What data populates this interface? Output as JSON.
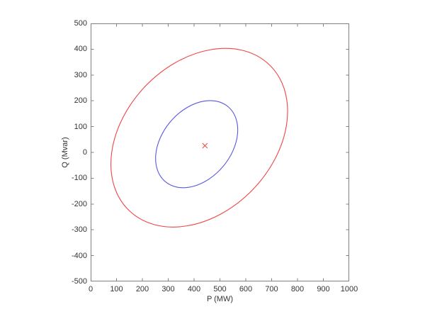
{
  "window": {
    "background_color": "#ffffff",
    "axis_color": "#808080",
    "text_color": "#333333"
  },
  "chart_data": {
    "type": "line",
    "title": "",
    "xlabel": "P (MW)",
    "ylabel": "Q (Mvar)",
    "xlim": [
      0,
      1000
    ],
    "ylim": [
      -500,
      500
    ],
    "xticks": [
      0,
      100,
      200,
      300,
      400,
      500,
      600,
      700,
      800,
      900,
      1000
    ],
    "yticks": [
      -500,
      -400,
      -300,
      -200,
      -100,
      0,
      100,
      200,
      300,
      400,
      500
    ],
    "grid": false,
    "legend": "none",
    "series": [
      {
        "name": "outer-ellipse",
        "shape": "ellipse",
        "color": "#ee4545",
        "center": [
          420,
          57
        ],
        "semi_major": 391,
        "semi_minor": 289,
        "rotation_deg": 46,
        "x_extent": [
          80,
          762
        ],
        "y_extent": [
          -289,
          403
        ]
      },
      {
        "name": "inner-ellipse",
        "shape": "ellipse",
        "color": "#5858e0",
        "center": [
          410,
          32
        ],
        "semi_major": 189,
        "semi_minor": 134,
        "rotation_deg": 50,
        "x_extent": [
          251,
          569
        ],
        "y_extent": [
          -136,
          200
        ]
      },
      {
        "name": "operating-point",
        "shape": "marker",
        "marker": "x",
        "color": "#ee4545",
        "point": [
          442,
          26
        ],
        "size": 7
      }
    ]
  }
}
